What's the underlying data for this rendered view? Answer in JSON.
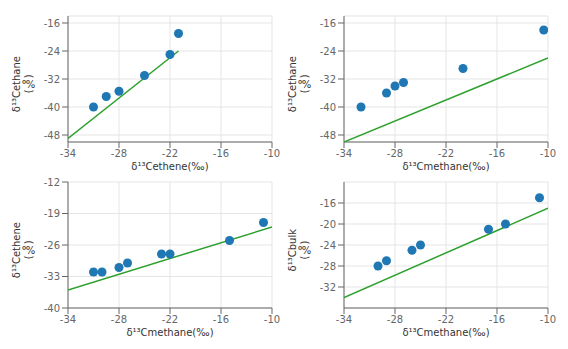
{
  "chart_data": [
    {
      "type": "scatter",
      "xlabel": "δ¹³Cethene(‰)",
      "ylabel": "δ¹³Cethane\n(‰)",
      "xlim": [
        -34,
        -10
      ],
      "ylim": [
        -50,
        -14
      ],
      "xticks": [
        -34,
        -28,
        -22,
        -16,
        -10
      ],
      "yticks": [
        -48,
        -40,
        -32,
        -24,
        -16
      ],
      "grid": true,
      "series": [
        {
          "type": "line",
          "color": "#2ca02c",
          "x": [
            -34,
            -21
          ],
          "values": [
            -49,
            -24
          ]
        },
        {
          "type": "scatter",
          "color": "#1f77b4",
          "x": [
            -31,
            -29.5,
            -28,
            -25,
            -22,
            -21
          ],
          "values": [
            -40,
            -37,
            -35.5,
            -31,
            -25,
            -19
          ]
        }
      ]
    },
    {
      "type": "scatter",
      "xlabel": "δ¹³Cmethane(‰)",
      "ylabel": "δ¹³Cethane\n(‰)",
      "xlim": [
        -34,
        -10
      ],
      "ylim": [
        -50,
        -14
      ],
      "xticks": [
        -34,
        -28,
        -22,
        -16,
        -10
      ],
      "yticks": [
        -48,
        -40,
        -32,
        -24,
        -16
      ],
      "grid": true,
      "series": [
        {
          "type": "line",
          "color": "#2ca02c",
          "x": [
            -34,
            -10
          ],
          "values": [
            -50,
            -26
          ]
        },
        {
          "type": "scatter",
          "color": "#1f77b4",
          "x": [
            -32,
            -29,
            -28,
            -27,
            -20,
            -10.5
          ],
          "values": [
            -40,
            -36,
            -34,
            -33,
            -29,
            -18
          ]
        }
      ]
    },
    {
      "type": "scatter",
      "xlabel": "δ¹³Cmethane(‰)",
      "ylabel": "δ¹³Cethene\n(‰)",
      "xlim": [
        -34,
        -10
      ],
      "ylim": [
        -40,
        -12
      ],
      "xticks": [
        -34,
        -28,
        -22,
        -16,
        -10
      ],
      "yticks": [
        -40,
        -33,
        -26,
        -19,
        -12
      ],
      "grid": true,
      "series": [
        {
          "type": "line",
          "color": "#2ca02c",
          "x": [
            -34,
            -10
          ],
          "values": [
            -36,
            -22
          ]
        },
        {
          "type": "scatter",
          "color": "#1f77b4",
          "x": [
            -31,
            -30,
            -28,
            -27,
            -23,
            -22,
            -15,
            -11
          ],
          "values": [
            -32,
            -32,
            -31,
            -30,
            -28,
            -28,
            -25,
            -21
          ]
        }
      ]
    },
    {
      "type": "scatter",
      "xlabel": "δ¹³Cmethane(‰)",
      "ylabel": "δ¹³Cbulk\n(‰)",
      "xlim": [
        -34,
        -10
      ],
      "ylim": [
        -36,
        -12
      ],
      "xticks": [
        -34,
        -28,
        -22,
        -16,
        -10
      ],
      "yticks": [
        -32,
        -28,
        -24,
        -20,
        -16
      ],
      "grid": true,
      "series": [
        {
          "type": "line",
          "color": "#2ca02c",
          "x": [
            -34,
            -10
          ],
          "values": [
            -34,
            -17
          ]
        },
        {
          "type": "scatter",
          "color": "#1f77b4",
          "x": [
            -30,
            -29,
            -26,
            -25,
            -17,
            -15,
            -11
          ],
          "values": [
            -28,
            -27,
            -25,
            -24,
            -21,
            -20,
            -15
          ]
        }
      ]
    }
  ]
}
